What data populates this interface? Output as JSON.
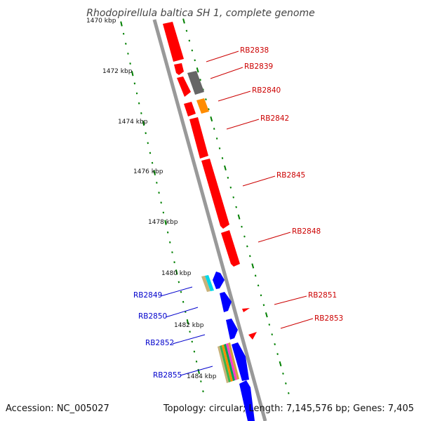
{
  "title": "Rhodopirellula baltica SH 1, complete genome",
  "footer": {
    "accession": "Accession: NC_005027",
    "summary": "Topology: circular; Length: 7,145,576 bp; Genes: 7,405"
  },
  "colors": {
    "forward_genes": "#ff0000",
    "reverse_genes": "#0000ff",
    "label_forward": "#cc0000",
    "label_reverse": "#0000cc",
    "backbone": "#999999",
    "tick": "#008000"
  },
  "scale_labels": [
    "1470 kbp",
    "1472 kbp",
    "1474 kbp",
    "1476 kbp",
    "1478 kbp",
    "1480 kbp",
    "1482 kbp",
    "1484 kbp"
  ],
  "forward_labels": [
    "RB2838",
    "RB2839",
    "RB2840",
    "RB2842",
    "RB2845",
    "RB2848",
    "RB2851",
    "RB2853"
  ],
  "reverse_labels": [
    "RB2849",
    "RB2850",
    "RB2852",
    "RB2855"
  ]
}
